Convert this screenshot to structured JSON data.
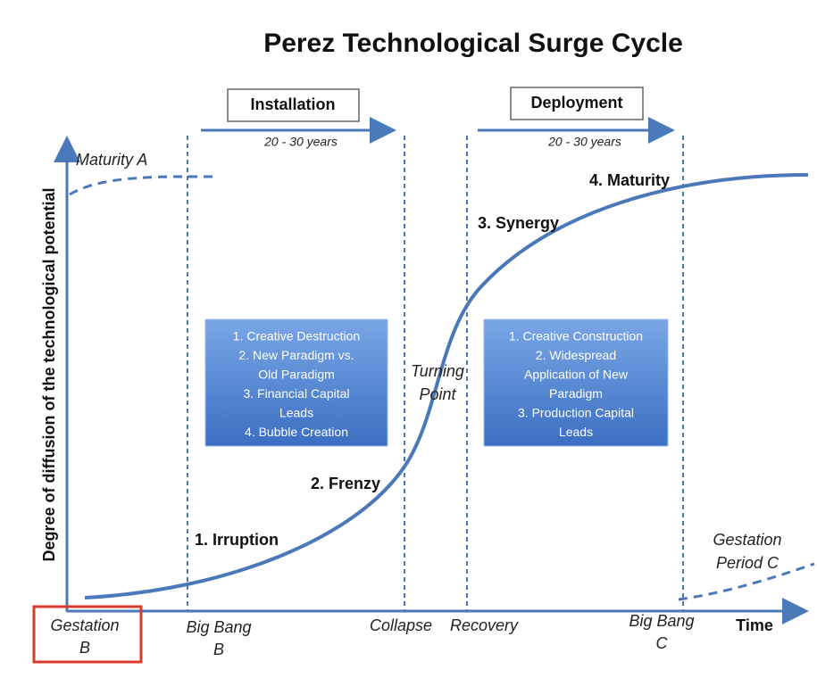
{
  "title": "Perez Technological Surge Cycle",
  "y_axis_label": "Degree of diffusion of the technological potential",
  "x_axis_label": "Time",
  "phases": [
    {
      "label": "Installation",
      "duration": "20 - 30 years"
    },
    {
      "label": "Deployment",
      "duration": "20 - 30 years"
    }
  ],
  "previous_cycle": "Maturity A",
  "stages": [
    "1. Irruption",
    "2. Frenzy",
    "3. Synergy",
    "4. Maturity"
  ],
  "turning_point": [
    "Turning",
    "Point"
  ],
  "next_cycle": [
    "Gestation",
    "Period C"
  ],
  "boxes": [
    [
      "1. Creative Destruction",
      "2. New Paradigm vs.",
      "Old Paradigm",
      "3. Financial Capital",
      "Leads",
      "4. Bubble Creation"
    ],
    [
      "1. Creative Construction",
      "2. Widespread",
      "Application of New",
      "Paradigm",
      "3. Production Capital",
      "Leads"
    ]
  ],
  "timeline": [
    [
      "Gestation",
      "B"
    ],
    [
      "Big Bang",
      "B"
    ],
    [
      "Collapse"
    ],
    [
      "Recovery"
    ],
    [
      "Big Bang",
      "C"
    ]
  ]
}
